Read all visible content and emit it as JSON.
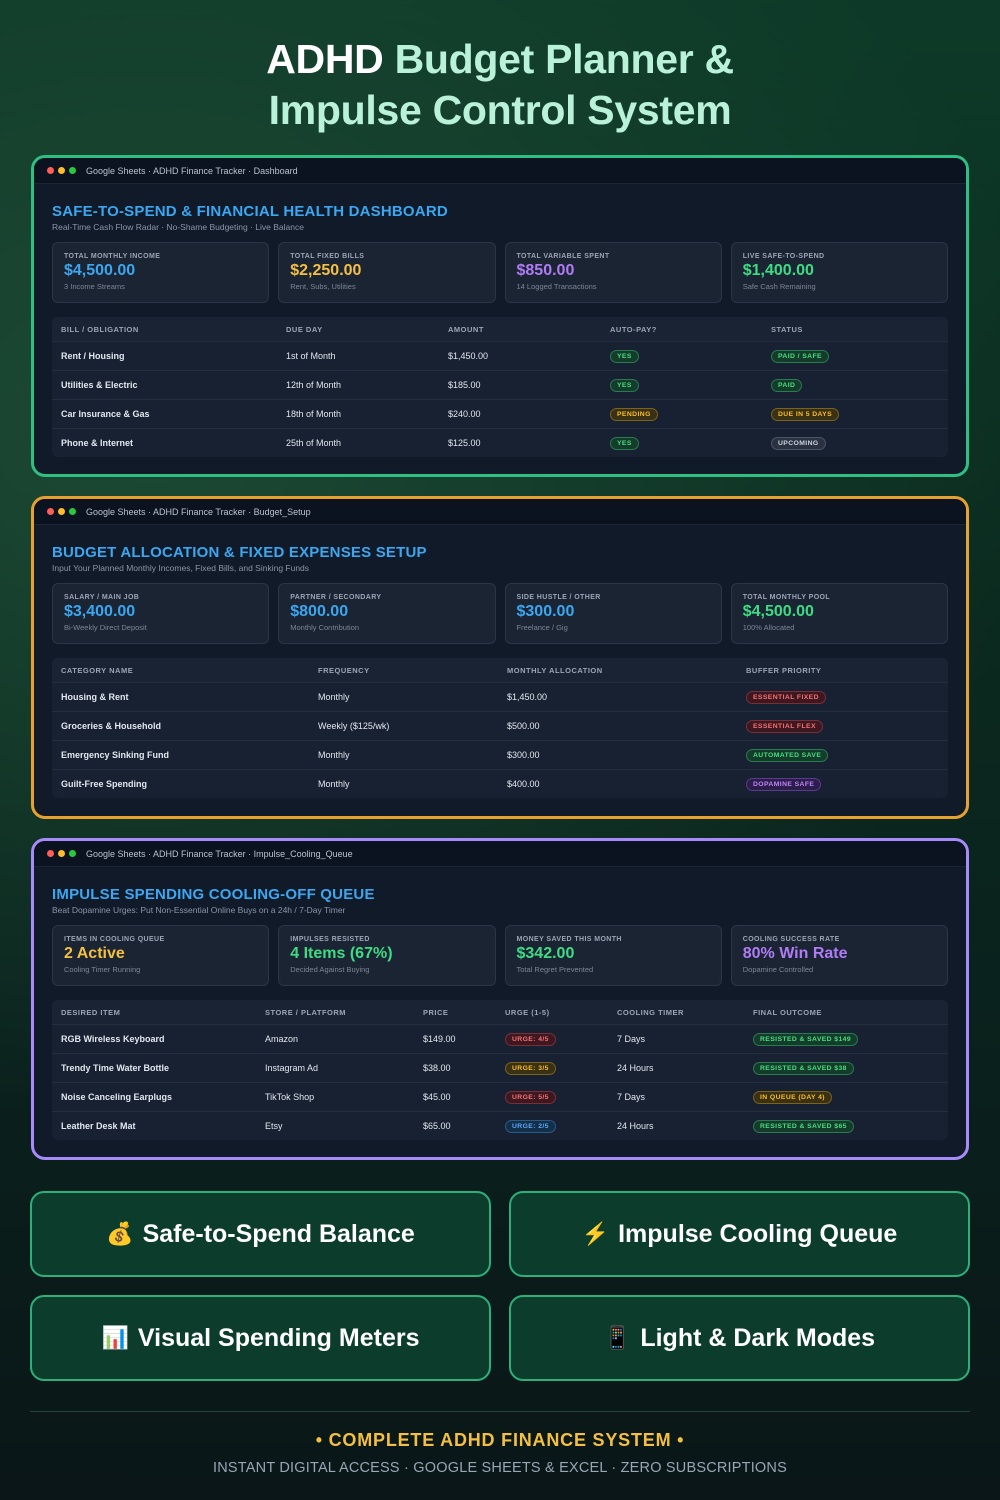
{
  "hero": {
    "title_line1_white": "ADHD",
    "title_line1_rest": "Budget Planner &",
    "title_line2": "Impulse Control System"
  },
  "panels": [
    {
      "chrome_title": "Google Sheets · ADHD Finance Tracker · Dashboard",
      "title": "SAFE-TO-SPEND & FINANCIAL HEALTH DASHBOARD",
      "subtitle": "Real-Time Cash Flow Radar · No-Shame Budgeting · Live Balance",
      "cards": [
        {
          "label": "TOTAL MONTHLY INCOME",
          "value": "$4,500.00",
          "note": "3 Income Streams"
        },
        {
          "label": "TOTAL FIXED BILLS",
          "value": "$2,250.00",
          "note": "Rent, Subs, Utilities"
        },
        {
          "label": "TOTAL VARIABLE SPENT",
          "value": "$850.00",
          "note": "14 Logged Transactions"
        },
        {
          "label": "LIVE SAFE-TO-SPEND",
          "value": "$1,400.00",
          "note": "Safe Cash Remaining"
        }
      ],
      "headers": [
        "BILL / OBLIGATION",
        "DUE DAY",
        "AMOUNT",
        "AUTO-PAY?",
        "STATUS"
      ],
      "rows": [
        [
          "Rent / Housing",
          "1st of Month",
          "$1,450.00",
          "YES",
          "PAID / SAFE"
        ],
        [
          "Utilities & Electric",
          "12th of Month",
          "$185.00",
          "YES",
          "PAID"
        ],
        [
          "Car Insurance & Gas",
          "18th of Month",
          "$240.00",
          "PENDING",
          "DUE IN 5 DAYS"
        ],
        [
          "Phone & Internet",
          "25th of Month",
          "$125.00",
          "YES",
          "UPCOMING"
        ]
      ]
    },
    {
      "chrome_title": "Google Sheets · ADHD Finance Tracker · Budget_Setup",
      "title": "BUDGET ALLOCATION & FIXED EXPENSES SETUP",
      "subtitle": "Input Your Planned Monthly Incomes, Fixed Bills, and Sinking Funds",
      "cards": [
        {
          "label": "SALARY / MAIN JOB",
          "value": "$3,400.00",
          "note": "Bi-Weekly Direct Deposit"
        },
        {
          "label": "PARTNER / SECONDARY",
          "value": "$800.00",
          "note": "Monthly Contribution"
        },
        {
          "label": "SIDE HUSTLE / OTHER",
          "value": "$300.00",
          "note": "Freelance / Gig"
        },
        {
          "label": "TOTAL MONTHLY POOL",
          "value": "$4,500.00",
          "note": "100% Allocated"
        }
      ],
      "headers": [
        "CATEGORY NAME",
        "FREQUENCY",
        "MONTHLY ALLOCATION",
        "BUFFER PRIORITY"
      ],
      "rows": [
        [
          "Housing & Rent",
          "Monthly",
          "$1,450.00",
          "ESSENTIAL FIXED"
        ],
        [
          "Groceries & Household",
          "Weekly ($125/wk)",
          "$500.00",
          "ESSENTIAL FLEX"
        ],
        [
          "Emergency Sinking Fund",
          "Monthly",
          "$300.00",
          "AUTOMATED SAVE"
        ],
        [
          "Guilt-Free Spending",
          "Monthly",
          "$400.00",
          "DOPAMINE SAFE"
        ]
      ]
    },
    {
      "chrome_title": "Google Sheets · ADHD Finance Tracker · Impulse_Cooling_Queue",
      "title": "IMPULSE SPENDING COOLING-OFF QUEUE",
      "subtitle": "Beat Dopamine Urges: Put Non-Essential Online Buys on a 24h / 7-Day Timer",
      "cards": [
        {
          "label": "ITEMS IN COOLING QUEUE",
          "value": "2 Active",
          "note": "Cooling Timer Running"
        },
        {
          "label": "IMPULSES RESISTED",
          "value": "4 Items (67%)",
          "note": "Decided Against Buying"
        },
        {
          "label": "MONEY SAVED THIS MONTH",
          "value": "$342.00",
          "note": "Total Regret Prevented"
        },
        {
          "label": "COOLING SUCCESS RATE",
          "value": "80% Win Rate",
          "note": "Dopamine Controlled"
        }
      ],
      "headers": [
        "DESIRED ITEM",
        "STORE / PLATFORM",
        "PRICE",
        "URGE (1-5)",
        "COOLING TIMER",
        "FINAL OUTCOME"
      ],
      "rows": [
        [
          "RGB Wireless Keyboard",
          "Amazon",
          "$149.00",
          "URGE: 4/5",
          "7 Days",
          "RESISTED & SAVED $149"
        ],
        [
          "Trendy Time Water Bottle",
          "Instagram Ad",
          "$38.00",
          "URGE: 3/5",
          "24 Hours",
          "RESISTED & SAVED $38"
        ],
        [
          "Noise Canceling Earplugs",
          "TikTok Shop",
          "$45.00",
          "URGE: 5/5",
          "7 Days",
          "IN QUEUE (DAY 4)"
        ],
        [
          "Leather Desk Mat",
          "Etsy",
          "$65.00",
          "URGE: 2/5",
          "24 Hours",
          "RESISTED & SAVED $65"
        ]
      ]
    }
  ],
  "features": [
    {
      "icon": "💰",
      "label": "Safe-to-Spend Balance"
    },
    {
      "icon": "⚡",
      "label": "Impulse Cooling Queue"
    },
    {
      "icon": "📊",
      "label": "Visual Spending Meters"
    },
    {
      "icon": "📱",
      "label": "Light & Dark Modes"
    }
  ],
  "footer": {
    "tagline": "• COMPLETE ADHD FINANCE SYSTEM •",
    "subline": "INSTANT DIGITAL ACCESS · GOOGLE SHEETS & EXCEL · ZERO SUBSCRIPTIONS"
  },
  "colors": {
    "accent_green": "#2fbf83",
    "accent_orange": "#e8a12f",
    "accent_purple": "#a78bfa",
    "title_blue": "#3aa7f0",
    "footer_gold": "#f5c040"
  }
}
